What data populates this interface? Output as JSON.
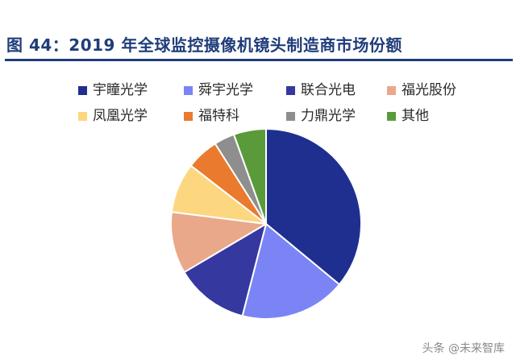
{
  "chart_data": {
    "type": "pie",
    "title": "图 44：2019 年全球监控摄像机镜头制造商市场份额",
    "categories": [
      "宇瞳光学",
      "舜宇光学",
      "联合光电",
      "福光股份",
      "凤凰光学",
      "福特科",
      "力鼎光学",
      "其他"
    ],
    "values": [
      36.0,
      18.0,
      12.5,
      10.5,
      8.5,
      5.5,
      3.5,
      5.5
    ],
    "colors": [
      "#1f2f8f",
      "#7b84f5",
      "#34389f",
      "#eaa88a",
      "#fcd77f",
      "#ea7a2d",
      "#8e8e8e",
      "#5b9a3b"
    ],
    "start_angle_deg": 0,
    "direction": "clockwise",
    "legend_position": "top"
  },
  "watermark": "头条 @未来智库"
}
